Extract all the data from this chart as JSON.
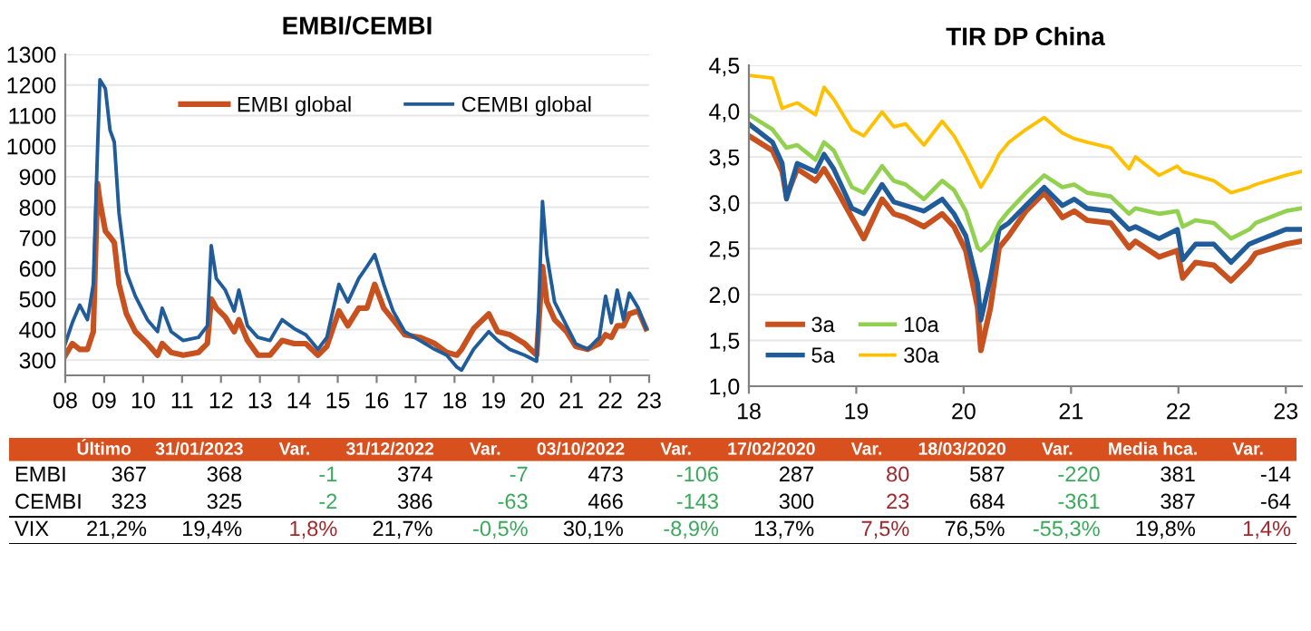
{
  "chart_data": [
    {
      "type": "line",
      "title": "EMBI/CEMBI",
      "xlim": [
        2008,
        2023
      ],
      "ylim": [
        250,
        1300
      ],
      "xticks": [
        {
          "value": 2008,
          "label": "08"
        },
        {
          "value": 2009,
          "label": "09"
        },
        {
          "value": 2010,
          "label": "10"
        },
        {
          "value": 2011,
          "label": "11"
        },
        {
          "value": 2012,
          "label": "12"
        },
        {
          "value": 2013,
          "label": "13"
        },
        {
          "value": 2014,
          "label": "14"
        },
        {
          "value": 2015,
          "label": "15"
        },
        {
          "value": 2016,
          "label": "16"
        },
        {
          "value": 2017,
          "label": "17"
        },
        {
          "value": 2018,
          "label": "18"
        },
        {
          "value": 2019,
          "label": "19"
        },
        {
          "value": 2020,
          "label": "20"
        },
        {
          "value": 2021,
          "label": "21"
        },
        {
          "value": 2022,
          "label": "22"
        },
        {
          "value": 2023,
          "label": "23"
        }
      ],
      "yticks": [
        300,
        400,
        500,
        600,
        700,
        800,
        900,
        1000,
        1100,
        1200,
        1300
      ],
      "grid": "y",
      "legend": "top",
      "marker": "none",
      "line_style": "solid",
      "x": [
        2008.0,
        2008.18,
        2008.37,
        2008.57,
        2008.72,
        2008.83,
        2008.89,
        2009.03,
        2009.15,
        2009.26,
        2009.38,
        2009.57,
        2009.8,
        2010.11,
        2010.37,
        2010.49,
        2010.72,
        2011.03,
        2011.42,
        2011.65,
        2011.75,
        2011.88,
        2012.11,
        2012.34,
        2012.46,
        2012.68,
        2012.95,
        2013.26,
        2013.57,
        2013.88,
        2014.18,
        2014.49,
        2014.72,
        2015.03,
        2015.26,
        2015.54,
        2015.75,
        2015.95,
        2016.18,
        2016.42,
        2016.72,
        2017.11,
        2017.49,
        2017.8,
        2018.06,
        2018.18,
        2018.49,
        2018.88,
        2019.11,
        2019.42,
        2019.8,
        2020.11,
        2020.26,
        2020.37,
        2020.57,
        2020.88,
        2021.11,
        2021.42,
        2021.72,
        2021.88,
        2022.03,
        2022.18,
        2022.34,
        2022.49,
        2022.72,
        2022.92
      ],
      "series": [
        {
          "name": "EMBI global",
          "color": "#c8521f",
          "values": [
            315,
            354,
            335,
            335,
            393,
            878,
            819,
            722,
            703,
            684,
            548,
            451,
            393,
            354,
            316,
            354,
            325,
            316,
            325,
            354,
            500,
            470,
            441,
            393,
            432,
            364,
            316,
            316,
            364,
            354,
            354,
            316,
            345,
            461,
            412,
            470,
            470,
            548,
            470,
            432,
            383,
            374,
            354,
            325,
            316,
            335,
            403,
            451,
            393,
            383,
            354,
            316,
            606,
            490,
            432,
            393,
            345,
            335,
            354,
            383,
            374,
            412,
            412,
            451,
            461,
            403
          ]
        },
        {
          "name": "CEMBI global",
          "color": "#1f5c99",
          "values": [
            354,
            422,
            480,
            432,
            548,
            994,
            1217,
            1188,
            1052,
            1013,
            781,
            587,
            509,
            432,
            393,
            470,
            393,
            364,
            374,
            412,
            674,
            567,
            529,
            461,
            529,
            412,
            374,
            364,
            432,
            403,
            383,
            335,
            374,
            548,
            490,
            567,
            606,
            645,
            548,
            461,
            393,
            364,
            335,
            316,
            277,
            267,
            335,
            393,
            364,
            335,
            316,
            296,
            819,
            645,
            490,
            412,
            354,
            335,
            374,
            509,
            422,
            529,
            432,
            519,
            470,
            403
          ]
        }
      ]
    },
    {
      "type": "line",
      "title": "TIR DP China",
      "xlim": [
        2018,
        2023.15
      ],
      "ylim": [
        1.0,
        4.5
      ],
      "xticks": [
        {
          "value": 2018,
          "label": "18"
        },
        {
          "value": 2019,
          "label": "19"
        },
        {
          "value": 2020,
          "label": "20"
        },
        {
          "value": 2021,
          "label": "21"
        },
        {
          "value": 2022,
          "label": "22"
        },
        {
          "value": 2023,
          "label": "23"
        }
      ],
      "yticks": [
        {
          "value": 1.0,
          "label": "1,0"
        },
        {
          "value": 1.5,
          "label": "1,5"
        },
        {
          "value": 2.0,
          "label": "2,0"
        },
        {
          "value": 2.5,
          "label": "2,5"
        },
        {
          "value": 3.0,
          "label": "3,0"
        },
        {
          "value": 3.5,
          "label": "3,5"
        },
        {
          "value": 4.0,
          "label": "4,0"
        },
        {
          "value": 4.5,
          "label": "4,5"
        }
      ],
      "grid": "y",
      "legend": "bottom left",
      "marker": "none",
      "line_style": "solid",
      "x": [
        2018.0,
        2018.22,
        2018.31,
        2018.35,
        2018.45,
        2018.62,
        2018.7,
        2018.79,
        2018.96,
        2019.07,
        2019.24,
        2019.35,
        2019.46,
        2019.63,
        2019.8,
        2019.91,
        2020.02,
        2020.13,
        2020.16,
        2020.25,
        2020.33,
        2020.42,
        2020.58,
        2020.75,
        2020.92,
        2021.03,
        2021.15,
        2021.37,
        2021.54,
        2021.6,
        2021.82,
        2021.99,
        2022.04,
        2022.16,
        2022.33,
        2022.49,
        2022.66,
        2022.72,
        2023.0,
        2023.14
      ],
      "series": [
        {
          "name": "3a",
          "color": "#c8521f",
          "values": [
            3.73,
            3.57,
            3.34,
            3.07,
            3.37,
            3.24,
            3.37,
            3.2,
            2.84,
            2.61,
            3.04,
            2.88,
            2.84,
            2.74,
            2.88,
            2.74,
            2.48,
            1.86,
            1.39,
            1.86,
            2.51,
            2.64,
            2.91,
            3.11,
            2.84,
            2.91,
            2.81,
            2.78,
            2.51,
            2.58,
            2.41,
            2.48,
            2.18,
            2.35,
            2.32,
            2.15,
            2.35,
            2.45,
            2.55,
            2.58
          ]
        },
        {
          "name": "5a",
          "color": "#1f5c99",
          "values": [
            3.86,
            3.66,
            3.43,
            3.04,
            3.43,
            3.34,
            3.53,
            3.37,
            2.94,
            2.88,
            3.2,
            3.01,
            2.97,
            2.91,
            3.04,
            2.88,
            2.64,
            2.12,
            1.72,
            2.18,
            2.71,
            2.78,
            2.97,
            3.17,
            2.97,
            3.04,
            2.94,
            2.91,
            2.71,
            2.74,
            2.61,
            2.71,
            2.38,
            2.55,
            2.55,
            2.35,
            2.55,
            2.58,
            2.71,
            2.71
          ]
        },
        {
          "name": "10a",
          "color": "#92d050",
          "values": [
            3.96,
            3.8,
            3.66,
            3.6,
            3.63,
            3.47,
            3.66,
            3.57,
            3.17,
            3.11,
            3.4,
            3.24,
            3.2,
            3.04,
            3.24,
            3.14,
            2.91,
            2.51,
            2.48,
            2.58,
            2.78,
            2.91,
            3.11,
            3.3,
            3.17,
            3.2,
            3.11,
            3.07,
            2.88,
            2.94,
            2.88,
            2.91,
            2.74,
            2.81,
            2.78,
            2.61,
            2.71,
            2.78,
            2.91,
            2.94
          ]
        },
        {
          "name": "30a",
          "color": "#ffc000",
          "values": [
            4.39,
            4.36,
            4.03,
            4.05,
            4.09,
            3.96,
            4.26,
            4.13,
            3.8,
            3.73,
            3.99,
            3.83,
            3.86,
            3.63,
            3.89,
            3.73,
            3.5,
            3.24,
            3.17,
            3.34,
            3.53,
            3.66,
            3.8,
            3.93,
            3.76,
            3.7,
            3.66,
            3.6,
            3.37,
            3.5,
            3.3,
            3.4,
            3.34,
            3.3,
            3.24,
            3.11,
            3.17,
            3.2,
            3.3,
            3.34
          ]
        }
      ]
    },
    {
      "type": "other",
      "categories": [
        "Último",
        "31/01/2023",
        "Var.",
        "31/12/2022",
        "Var.",
        "03/10/2022",
        "Var.",
        "17/02/2020",
        "Var.",
        "18/03/2020",
        "Var.",
        "Media hca.",
        "Var."
      ],
      "y_categories": [
        "EMBI",
        "CEMBI",
        "VIX"
      ],
      "cell_labels": [
        [
          "367",
          "368",
          "-1",
          "374",
          "-7",
          "473",
          "-106",
          "287",
          "80",
          "587",
          "-220",
          "381",
          "-14"
        ],
        [
          "323",
          "325",
          "-2",
          "386",
          "-63",
          "466",
          "-143",
          "300",
          "23",
          "684",
          "-361",
          "387",
          "-64"
        ],
        [
          "21,2%",
          "19,4%",
          "1,8%",
          "21,7%",
          "-0,5%",
          "30,1%",
          "-8,9%",
          "13,7%",
          "7,5%",
          "76,5%",
          "-55,3%",
          "19,8%",
          "1,4%"
        ]
      ],
      "colors": [
        [
          null,
          null,
          "#3aa85a",
          null,
          "#3aa85a",
          null,
          "#3aa85a",
          null,
          "#a0282d",
          null,
          "#3aa85a",
          null,
          null
        ],
        [
          null,
          null,
          "#3aa85a",
          null,
          "#3aa85a",
          null,
          "#3aa85a",
          null,
          "#a0282d",
          null,
          "#3aa85a",
          null,
          null
        ],
        [
          null,
          null,
          "#a0282d",
          null,
          "#3aa85a",
          null,
          "#3aa85a",
          null,
          "#a0282d",
          null,
          "#3aa85a",
          null,
          "#a0282d"
        ]
      ],
      "color": "#d9501f"
    }
  ]
}
